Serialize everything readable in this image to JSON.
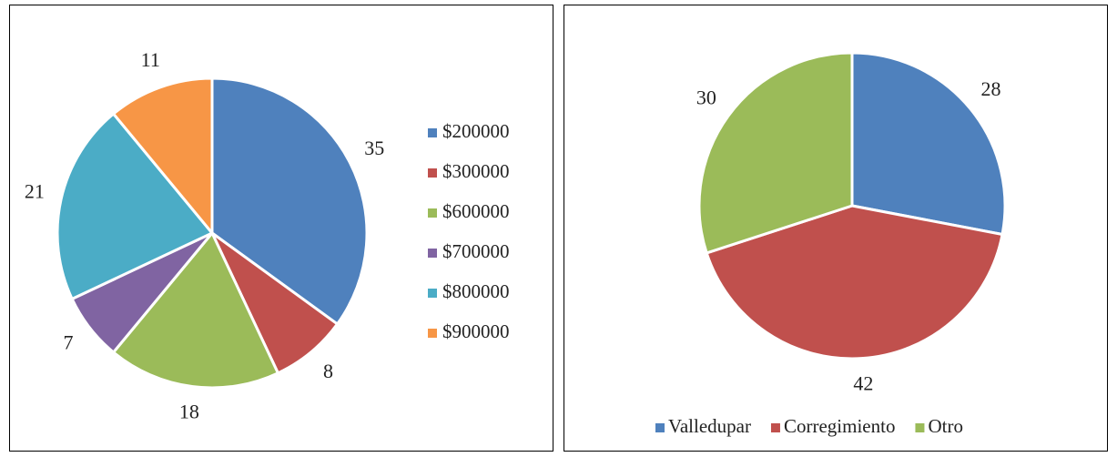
{
  "chart_data": [
    {
      "type": "pie",
      "categories": [
        "$200000",
        "$300000",
        "$600000",
        "$700000",
        "$800000",
        "$900000"
      ],
      "values": [
        35,
        8,
        18,
        7,
        21,
        11
      ],
      "colors": [
        "#4f81bd",
        "#c0504d",
        "#9bbb59",
        "#8064a2",
        "#4bacc6",
        "#f79646"
      ],
      "legend": "right"
    },
    {
      "type": "pie",
      "categories": [
        "Valledupar",
        "Corregimiento",
        "Otro"
      ],
      "values": [
        28,
        42,
        30
      ],
      "colors": [
        "#4f81bd",
        "#c0504d",
        "#9bbb59"
      ],
      "legend": "bottom"
    }
  ]
}
